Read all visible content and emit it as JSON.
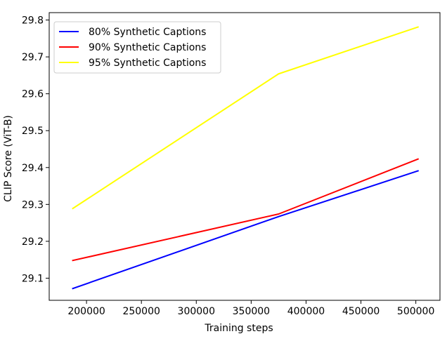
{
  "chart_data": {
    "type": "line",
    "title": "",
    "xlabel": "Training steps",
    "ylabel": "CLIP Score (ViT-B)",
    "xlim": [
      166000,
      522000
    ],
    "ylim": [
      29.04,
      29.82
    ],
    "x_ticks": [
      200000,
      250000,
      300000,
      350000,
      400000,
      450000,
      500000
    ],
    "x_tick_labels": [
      "200000",
      "250000",
      "300000",
      "350000",
      "400000",
      "450000",
      "500000"
    ],
    "y_ticks": [
      29.1,
      29.2,
      29.3,
      29.4,
      29.5,
      29.6,
      29.7,
      29.8
    ],
    "y_tick_labels": [
      "29.1",
      "29.2",
      "29.3",
      "29.4",
      "29.5",
      "29.6",
      "29.7",
      "29.8"
    ],
    "grid": false,
    "legend_position": "top-left",
    "series": [
      {
        "name": "80% Synthetic Captions",
        "color": "#0000ff",
        "x": [
          187500,
          375000,
          502000
        ],
        "y": [
          29.072,
          29.267,
          29.391
        ]
      },
      {
        "name": "90% Synthetic Captions",
        "color": "#ff0000",
        "x": [
          187500,
          375000,
          502000
        ],
        "y": [
          29.148,
          29.274,
          29.423
        ]
      },
      {
        "name": "95% Synthetic Captions",
        "color": "#ffff00",
        "x": [
          187500,
          375000,
          502000
        ],
        "y": [
          29.289,
          29.654,
          29.781
        ]
      }
    ]
  }
}
